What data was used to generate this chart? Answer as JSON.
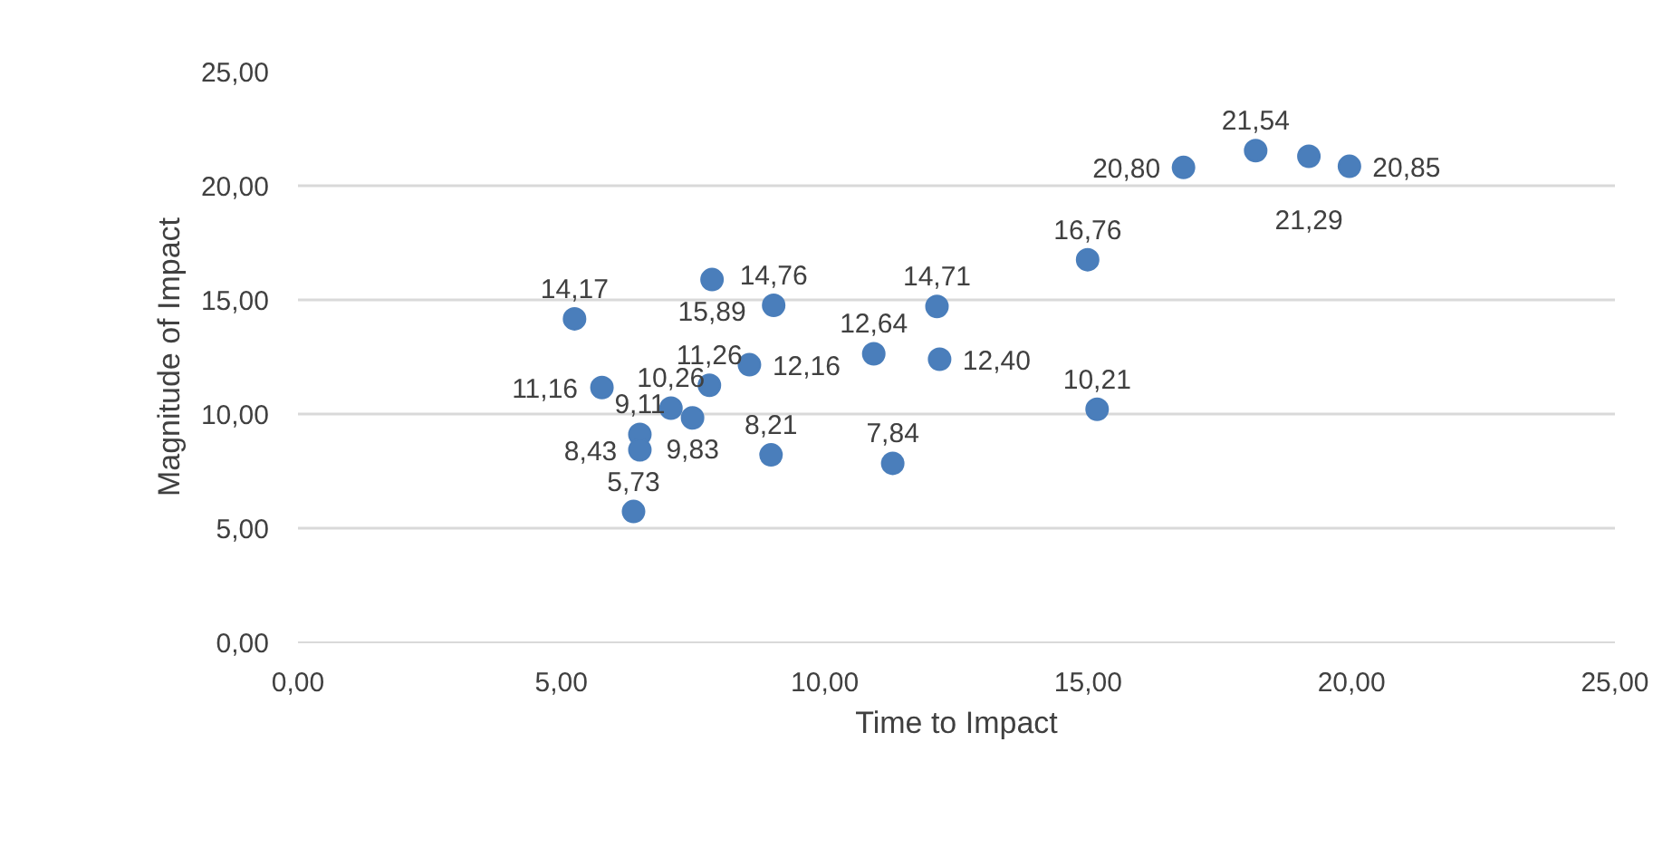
{
  "chart_data": {
    "type": "scatter",
    "xlabel": "Time to Impact",
    "ylabel": "Magnitude of Impact",
    "x": [
      5.25,
      5.77,
      6.49,
      6.49,
      6.37,
      7.08,
      7.49,
      7.81,
      7.86,
      8.57,
      9.03,
      8.98,
      10.93,
      12.13,
      12.18,
      11.29,
      14.99,
      15.17,
      16.81,
      18.18,
      19.19,
      19.96
    ],
    "values": [
      14.17,
      11.16,
      9.11,
      8.43,
      5.73,
      10.26,
      9.83,
      11.26,
      15.89,
      12.16,
      14.76,
      8.21,
      12.64,
      14.71,
      12.4,
      7.84,
      16.76,
      10.21,
      20.8,
      21.54,
      21.29,
      20.85
    ],
    "value_labels": [
      "14,17",
      "11,16",
      "9,11",
      "8,43",
      "5,73",
      "10,26",
      "9,83",
      "11,26",
      "15,89",
      "12,16",
      "14,76",
      "8,21",
      "12,64",
      "14,71",
      "12,40",
      "7,84",
      "16,76",
      "10,21",
      "20,80",
      "21,54",
      "21,29",
      "20,85"
    ],
    "color": "#4a7ebb",
    "marker": "circle",
    "grid": "y",
    "xlim": [
      0,
      25
    ],
    "xticks": [
      {
        "value": 0,
        "label": "0,00"
      },
      {
        "value": 5,
        "label": "5,00"
      },
      {
        "value": 10,
        "label": "10,00"
      },
      {
        "value": 15,
        "label": "15,00"
      },
      {
        "value": 20,
        "label": "20,00"
      },
      {
        "value": 25,
        "label": "25,00"
      }
    ],
    "ylim": [
      0,
      25
    ],
    "yticks": [
      {
        "value": 0,
        "label": "0,00"
      },
      {
        "value": 5,
        "label": "5,00"
      },
      {
        "value": 10,
        "label": "10,00"
      },
      {
        "value": 15,
        "label": "15,00"
      },
      {
        "value": 20,
        "label": "20,00"
      },
      {
        "value": 25,
        "label": "25,00"
      }
    ]
  }
}
